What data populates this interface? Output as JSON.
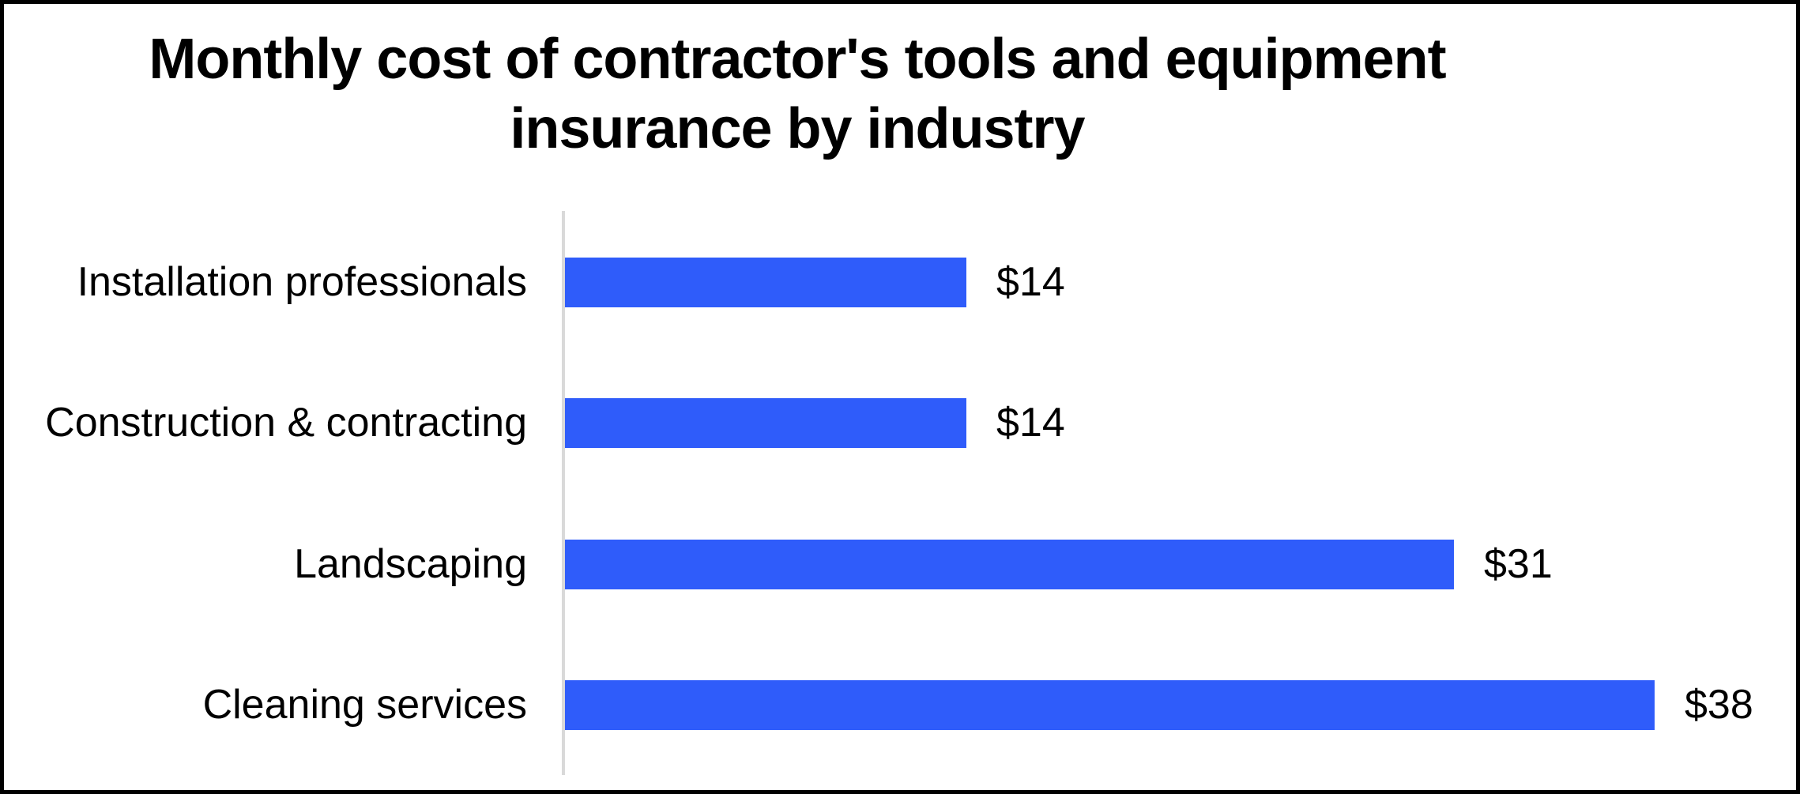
{
  "page": {
    "background_color": "#ffffff",
    "border_color": "#000000"
  },
  "chart_data": {
    "type": "bar",
    "orientation": "horizontal",
    "title": "Monthly cost of contractor's tools and equipment insurance by industry",
    "title_lines": [
      "Monthly cost of contractor's tools and equipment",
      "insurance by industry"
    ],
    "categories": [
      "Installation professionals",
      "Construction & contracting",
      "Landscaping",
      "Cleaning services"
    ],
    "values": [
      14,
      14,
      31,
      38
    ],
    "value_labels": [
      "$14",
      "$14",
      "$31",
      "$38"
    ],
    "xlabel": "",
    "ylabel": "",
    "xlim": [
      0,
      42
    ],
    "grid": false,
    "legend": "none",
    "data_labels": "outside-end",
    "bar_color": "#2f5cfa",
    "axis_line_color": "#d9d9d9",
    "text_color": "#000000"
  }
}
